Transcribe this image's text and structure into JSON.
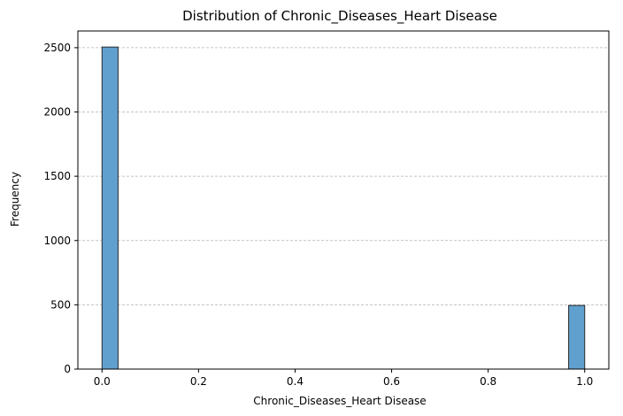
{
  "chart_data": {
    "type": "bar",
    "title": "Distribution of Chronic_Diseases_Heart Disease",
    "xlabel": "Chronic_Diseases_Heart Disease",
    "ylabel": "Frequency",
    "bins": [
      {
        "x0": 0.0,
        "x1": 0.0333,
        "count": 2505
      },
      {
        "x0": 0.9667,
        "x1": 1.0,
        "count": 495
      }
    ],
    "xlim": [
      -0.05,
      1.05
    ],
    "ylim": [
      0,
      2630
    ],
    "x_ticks": [
      0.0,
      0.2,
      0.4,
      0.6,
      0.8,
      1.0
    ],
    "x_tick_labels": [
      "0.0",
      "0.2",
      "0.4",
      "0.6",
      "0.8",
      "1.0"
    ],
    "y_ticks": [
      0,
      500,
      1000,
      1500,
      2000,
      2500
    ],
    "y_tick_labels": [
      "0",
      "500",
      "1000",
      "1500",
      "2000",
      "2500"
    ],
    "grid": "y-dashed",
    "bar_color": "#5fa0ce",
    "edge_color": "#2b2b2b",
    "grid_color": "#b0b0b0"
  }
}
